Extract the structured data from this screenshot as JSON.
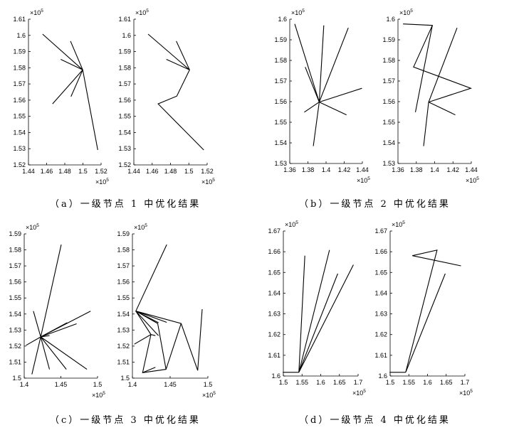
{
  "captions": {
    "a": "（a）一级节点 1 中优化结果",
    "b": "（b）一级节点 2 中优化结果",
    "c": "（c）一级节点 3 中优化结果",
    "d": "（d）一级节点 4 中优化结果"
  },
  "axis_multiplier": "×10",
  "axis_exponent": "5",
  "chart_data": [
    {
      "type": "line",
      "title": "",
      "xlabel": "",
      "ylabel": "",
      "xlim": [
        1.44,
        1.52
      ],
      "ylim": [
        1.52,
        1.61
      ],
      "xticks": [
        "1.44",
        "1.46",
        "1.48",
        "1.5",
        "1.52"
      ],
      "yticks": [
        "1.52",
        "1.53",
        "1.54",
        "1.55",
        "1.56",
        "1.57",
        "1.58",
        "1.59",
        "1.6",
        "1.61"
      ],
      "segments": [
        [
          [
            1.4998,
            1.5787
          ],
          [
            1.4555,
            1.6008
          ]
        ],
        [
          [
            1.4998,
            1.5787
          ],
          [
            1.4863,
            1.5965
          ]
        ],
        [
          [
            1.4998,
            1.5787
          ],
          [
            1.4755,
            1.5852
          ]
        ],
        [
          [
            1.4998,
            1.5787
          ],
          [
            1.4665,
            1.5577
          ]
        ],
        [
          [
            1.4998,
            1.5787
          ],
          [
            1.4868,
            1.5622
          ]
        ],
        [
          [
            1.4998,
            1.5787
          ],
          [
            1.5163,
            1.5292
          ]
        ]
      ]
    },
    {
      "type": "line",
      "title": "",
      "xlabel": "",
      "ylabel": "",
      "xlim": [
        1.44,
        1.52
      ],
      "ylim": [
        1.52,
        1.61
      ],
      "xticks": [
        "1.44",
        "1.46",
        "1.48",
        "1.5",
        "1.52"
      ],
      "yticks": [
        "1.52",
        "1.53",
        "1.54",
        "1.55",
        "1.56",
        "1.57",
        "1.58",
        "1.59",
        "1.6",
        "1.61"
      ],
      "segments": [
        [
          [
            1.5008,
            1.5787
          ],
          [
            1.4555,
            1.6008
          ]
        ],
        [
          [
            1.5008,
            1.5787
          ],
          [
            1.4863,
            1.5965
          ]
        ],
        [
          [
            1.5008,
            1.5787
          ],
          [
            1.4755,
            1.5852
          ]
        ],
        [
          [
            1.5008,
            1.5787
          ],
          [
            1.4868,
            1.5625
          ],
          [
            1.4665,
            1.5577
          ],
          [
            1.5163,
            1.5292
          ]
        ]
      ]
    },
    {
      "type": "line",
      "title": "",
      "xlabel": "",
      "ylabel": "",
      "xlim": [
        1.36,
        1.44
      ],
      "ylim": [
        1.53,
        1.6
      ],
      "xticks": [
        "1.36",
        "1.38",
        "1.4",
        "1.42",
        "1.44"
      ],
      "yticks": [
        "1.53",
        "1.54",
        "1.55",
        "1.56",
        "1.57",
        "1.58",
        "1.59",
        "1.6"
      ],
      "segments": [
        [
          [
            1.3925,
            1.5598
          ],
          [
            1.3655,
            1.5977
          ]
        ],
        [
          [
            1.3925,
            1.5598
          ],
          [
            1.3975,
            1.597
          ]
        ],
        [
          [
            1.3925,
            1.5598
          ],
          [
            1.4245,
            1.5958
          ]
        ],
        [
          [
            1.3925,
            1.5598
          ],
          [
            1.4395,
            1.5665
          ]
        ],
        [
          [
            1.3925,
            1.5598
          ],
          [
            1.4225,
            1.5536
          ]
        ],
        [
          [
            1.3925,
            1.5598
          ],
          [
            1.386,
            1.5384
          ]
        ],
        [
          [
            1.3925,
            1.5598
          ],
          [
            1.376,
            1.5549
          ]
        ],
        [
          [
            1.3925,
            1.5598
          ],
          [
            1.377,
            1.5768
          ]
        ]
      ]
    },
    {
      "type": "line",
      "title": "",
      "xlabel": "",
      "ylabel": "",
      "xlim": [
        1.36,
        1.44
      ],
      "ylim": [
        1.53,
        1.6
      ],
      "xticks": [
        "1.36",
        "1.38",
        "1.4",
        "1.42",
        "1.44"
      ],
      "yticks": [
        "1.53",
        "1.54",
        "1.55",
        "1.56",
        "1.57",
        "1.58",
        "1.59",
        "1.6"
      ],
      "segments": [
        [
          [
            1.3655,
            1.5977
          ],
          [
            1.3975,
            1.597
          ],
          [
            1.379,
            1.5549
          ]
        ],
        [
          [
            1.3975,
            1.597
          ],
          [
            1.377,
            1.5768
          ],
          [
            1.4395,
            1.5665
          ],
          [
            1.3935,
            1.5598
          ]
        ],
        [
          [
            1.3935,
            1.5598
          ],
          [
            1.4245,
            1.5958
          ]
        ],
        [
          [
            1.3935,
            1.5598
          ],
          [
            1.4225,
            1.5536
          ]
        ],
        [
          [
            1.3935,
            1.5598
          ],
          [
            1.388,
            1.5384
          ]
        ]
      ]
    },
    {
      "type": "line",
      "title": "",
      "xlabel": "",
      "ylabel": "",
      "xlim": [
        1.4,
        1.5
      ],
      "ylim": [
        1.5,
        1.59
      ],
      "xticks": [
        "1.4",
        "1.45",
        "1.5"
      ],
      "yticks": [
        "1.5",
        "1.51",
        "1.52",
        "1.53",
        "1.54",
        "1.55",
        "1.56",
        "1.57",
        "1.58",
        "1.59"
      ],
      "segments": [
        [
          [
            1.4225,
            1.5257
          ],
          [
            1.4505,
            1.5833
          ]
        ],
        [
          [
            1.4225,
            1.5257
          ],
          [
            1.4905,
            1.5418
          ]
        ],
        [
          [
            1.4225,
            1.5257
          ],
          [
            1.4715,
            1.5339
          ]
        ],
        [
          [
            1.4225,
            1.5257
          ],
          [
            1.4585,
            1.5346
          ]
        ],
        [
          [
            1.4225,
            1.5257
          ],
          [
            1.4125,
            1.5418
          ]
        ],
        [
          [
            1.4225,
            1.5257
          ],
          [
            1.4025,
            1.5205
          ]
        ],
        [
          [
            1.4225,
            1.5257
          ],
          [
            1.4105,
            1.5024
          ]
        ],
        [
          [
            1.4225,
            1.5257
          ],
          [
            1.4345,
            1.5055
          ]
        ],
        [
          [
            1.4225,
            1.5257
          ],
          [
            1.4575,
            1.5055
          ]
        ],
        [
          [
            1.4225,
            1.5257
          ],
          [
            1.4855,
            1.5055
          ]
        ],
        [
          [
            1.4225,
            1.5257
          ],
          [
            1.4345,
            1.5265
          ]
        ]
      ]
    },
    {
      "type": "line",
      "title": "",
      "xlabel": "",
      "ylabel": "",
      "xlim": [
        1.4,
        1.5
      ],
      "ylim": [
        1.5,
        1.59
      ],
      "xticks": [
        "1.4",
        "1.45",
        "1.5"
      ],
      "yticks": [
        "1.5",
        "1.51",
        "1.52",
        "1.53",
        "1.54",
        "1.55",
        "1.56",
        "1.57",
        "1.58",
        "1.59"
      ],
      "segments": [
        [
          [
            1.4455,
            1.5833
          ],
          [
            1.4045,
            1.5418
          ],
          [
            1.4345,
            1.5346
          ]
        ],
        [
          [
            1.4045,
            1.5418
          ],
          [
            1.4455,
            1.5348
          ]
        ],
        [
          [
            1.4045,
            1.5418
          ],
          [
            1.4345,
            1.5265
          ]
        ],
        [
          [
            1.4045,
            1.5418
          ],
          [
            1.4335,
            1.5341
          ],
          [
            1.4445,
            1.5055
          ]
        ],
        [
          [
            1.4045,
            1.5418
          ],
          [
            1.4645,
            1.5341
          ],
          [
            1.4865,
            1.5048
          ],
          [
            1.4925,
            1.543
          ]
        ],
        [
          [
            1.4045,
            1.5418
          ],
          [
            1.4245,
            1.5272
          ],
          [
            1.4305,
            1.5265
          ]
        ],
        [
          [
            1.4245,
            1.5272
          ],
          [
            1.4025,
            1.5212
          ]
        ],
        [
          [
            1.4245,
            1.5272
          ],
          [
            1.4135,
            1.5034
          ],
          [
            1.4445,
            1.5055
          ],
          [
            1.4645,
            1.5341
          ]
        ],
        [
          [
            1.4135,
            1.5034
          ],
          [
            1.4305,
            1.5068
          ]
        ]
      ]
    },
    {
      "type": "line",
      "title": "",
      "xlabel": "",
      "ylabel": "",
      "xlim": [
        1.5,
        1.7
      ],
      "ylim": [
        1.6,
        1.67
      ],
      "xticks": [
        "1.5",
        "1.55",
        "1.6",
        "1.65",
        "1.7"
      ],
      "yticks": [
        "1.6",
        "1.61",
        "1.62",
        "1.63",
        "1.64",
        "1.65",
        "1.66",
        "1.67"
      ],
      "segments": [
        [
          [
            1.4985,
            1.6018
          ],
          [
            1.5415,
            1.6018
          ]
        ],
        [
          [
            1.5415,
            1.6018
          ],
          [
            1.5575,
            1.6581
          ]
        ],
        [
          [
            1.5415,
            1.6018
          ],
          [
            1.6235,
            1.6608
          ]
        ],
        [
          [
            1.5415,
            1.6018
          ],
          [
            1.6455,
            1.6494
          ]
        ],
        [
          [
            1.5415,
            1.6018
          ],
          [
            1.6875,
            1.6537
          ]
        ]
      ]
    },
    {
      "type": "line",
      "title": "",
      "xlabel": "",
      "ylabel": "",
      "xlim": [
        1.5,
        1.7
      ],
      "ylim": [
        1.6,
        1.67
      ],
      "xticks": [
        "1.5",
        "1.55",
        "1.6",
        "1.65",
        "1.7"
      ],
      "yticks": [
        "1.6",
        "1.61",
        "1.62",
        "1.63",
        "1.64",
        "1.65",
        "1.66",
        "1.67"
      ],
      "segments": [
        [
          [
            1.4985,
            1.6018
          ],
          [
            1.5415,
            1.6018
          ]
        ],
        [
          [
            1.5415,
            1.6018
          ],
          [
            1.6475,
            1.6494
          ]
        ],
        [
          [
            1.5415,
            1.6018
          ],
          [
            1.6255,
            1.6608
          ],
          [
            1.5595,
            1.6581
          ],
          [
            1.6895,
            1.6532
          ]
        ]
      ]
    }
  ]
}
